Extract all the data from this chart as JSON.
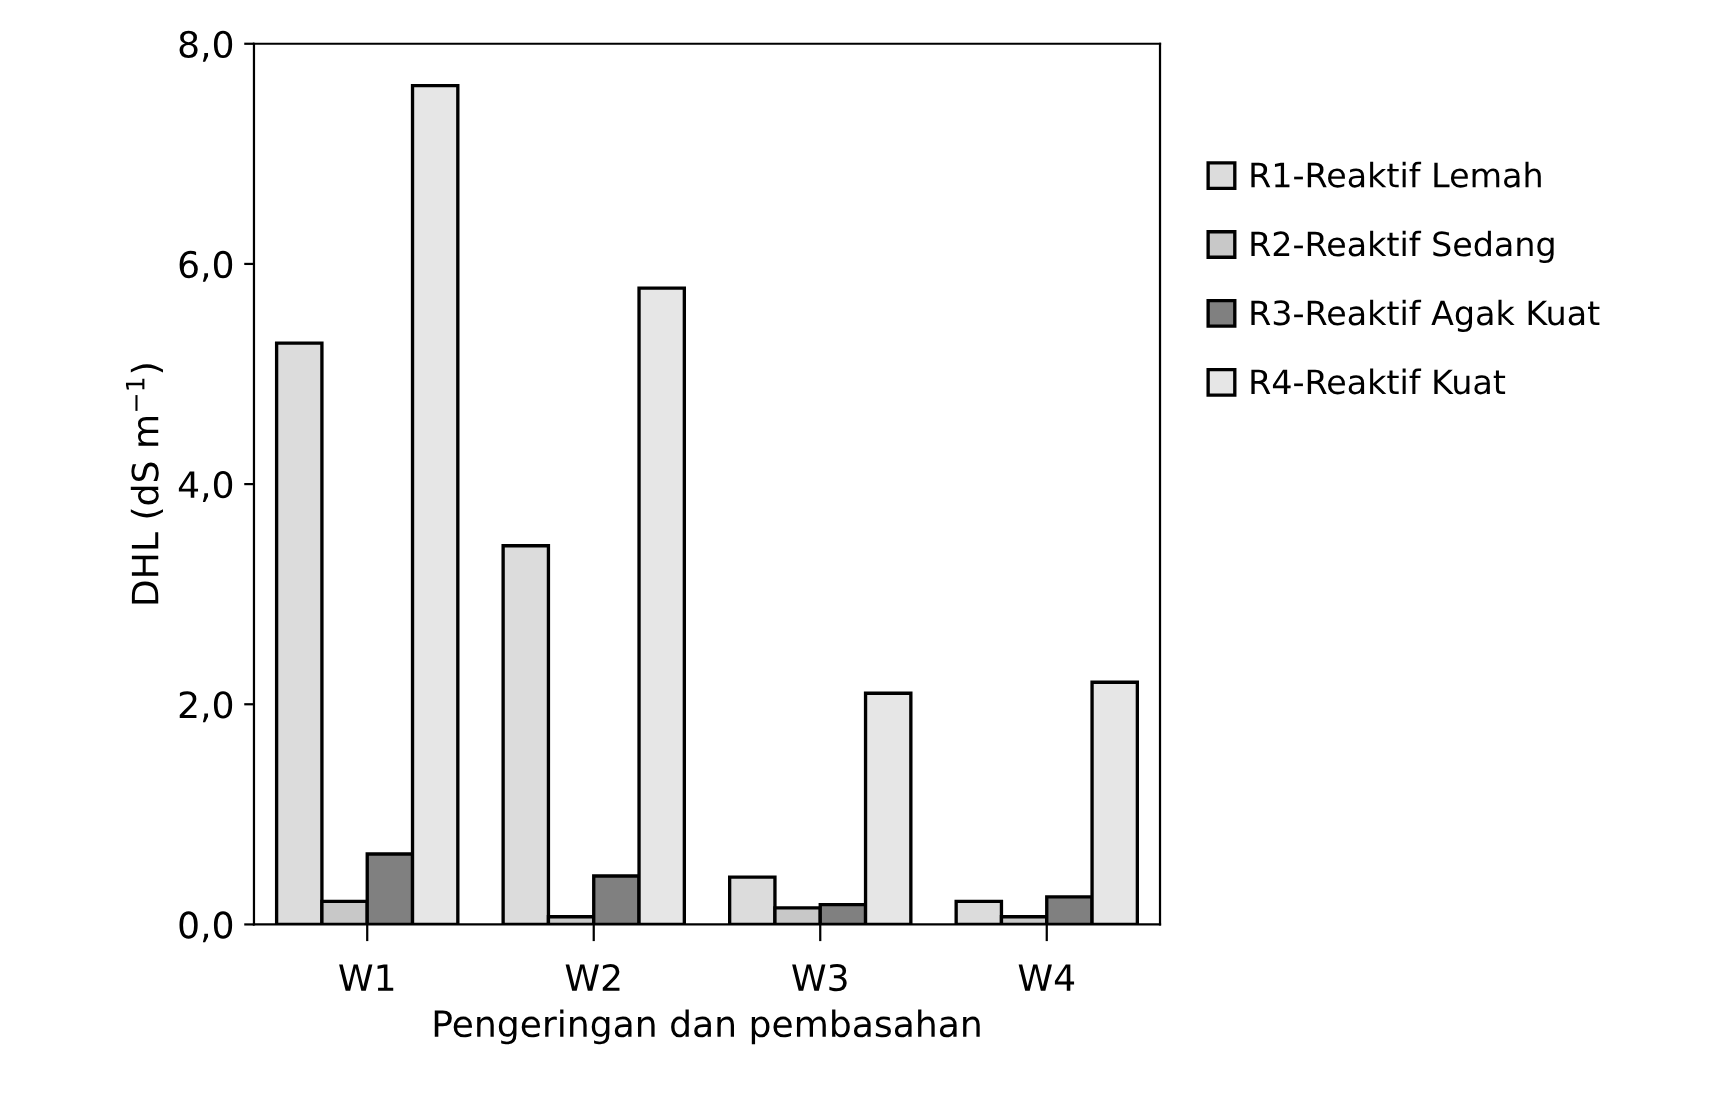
{
  "chart_data": {
    "type": "bar",
    "xlabel": "Pengeringan dan pembasahan",
    "ylabel": "DHL (dS m$^{−1}$)",
    "categories": [
      "W1",
      "W2",
      "W3",
      "W4"
    ],
    "series": [
      {
        "name": "R1-Reaktif Lemah",
        "color": "#dcdcdc",
        "values": [
          5.28,
          3.44,
          0.43,
          0.21
        ]
      },
      {
        "name": "R2-Reaktif Sedang",
        "color": "#c8c8c8",
        "values": [
          0.21,
          0.07,
          0.15,
          0.07
        ]
      },
      {
        "name": "R3-Reaktif Agak Kuat",
        "color": "#808080",
        "values": [
          0.64,
          0.44,
          0.18,
          0.25
        ]
      },
      {
        "name": "R4-Reaktif Kuat",
        "color": "#e6e6e6",
        "values": [
          7.62,
          5.78,
          2.1,
          2.2
        ]
      }
    ],
    "ylim": [
      0,
      8
    ],
    "yticks": [
      {
        "value": 0,
        "label": "0,0"
      },
      {
        "value": 2,
        "label": "2,0"
      },
      {
        "value": 4,
        "label": "4,0"
      },
      {
        "value": 6,
        "label": "6,0"
      },
      {
        "value": 8,
        "label": "8,0"
      }
    ],
    "grid": false,
    "legend": "right"
  }
}
